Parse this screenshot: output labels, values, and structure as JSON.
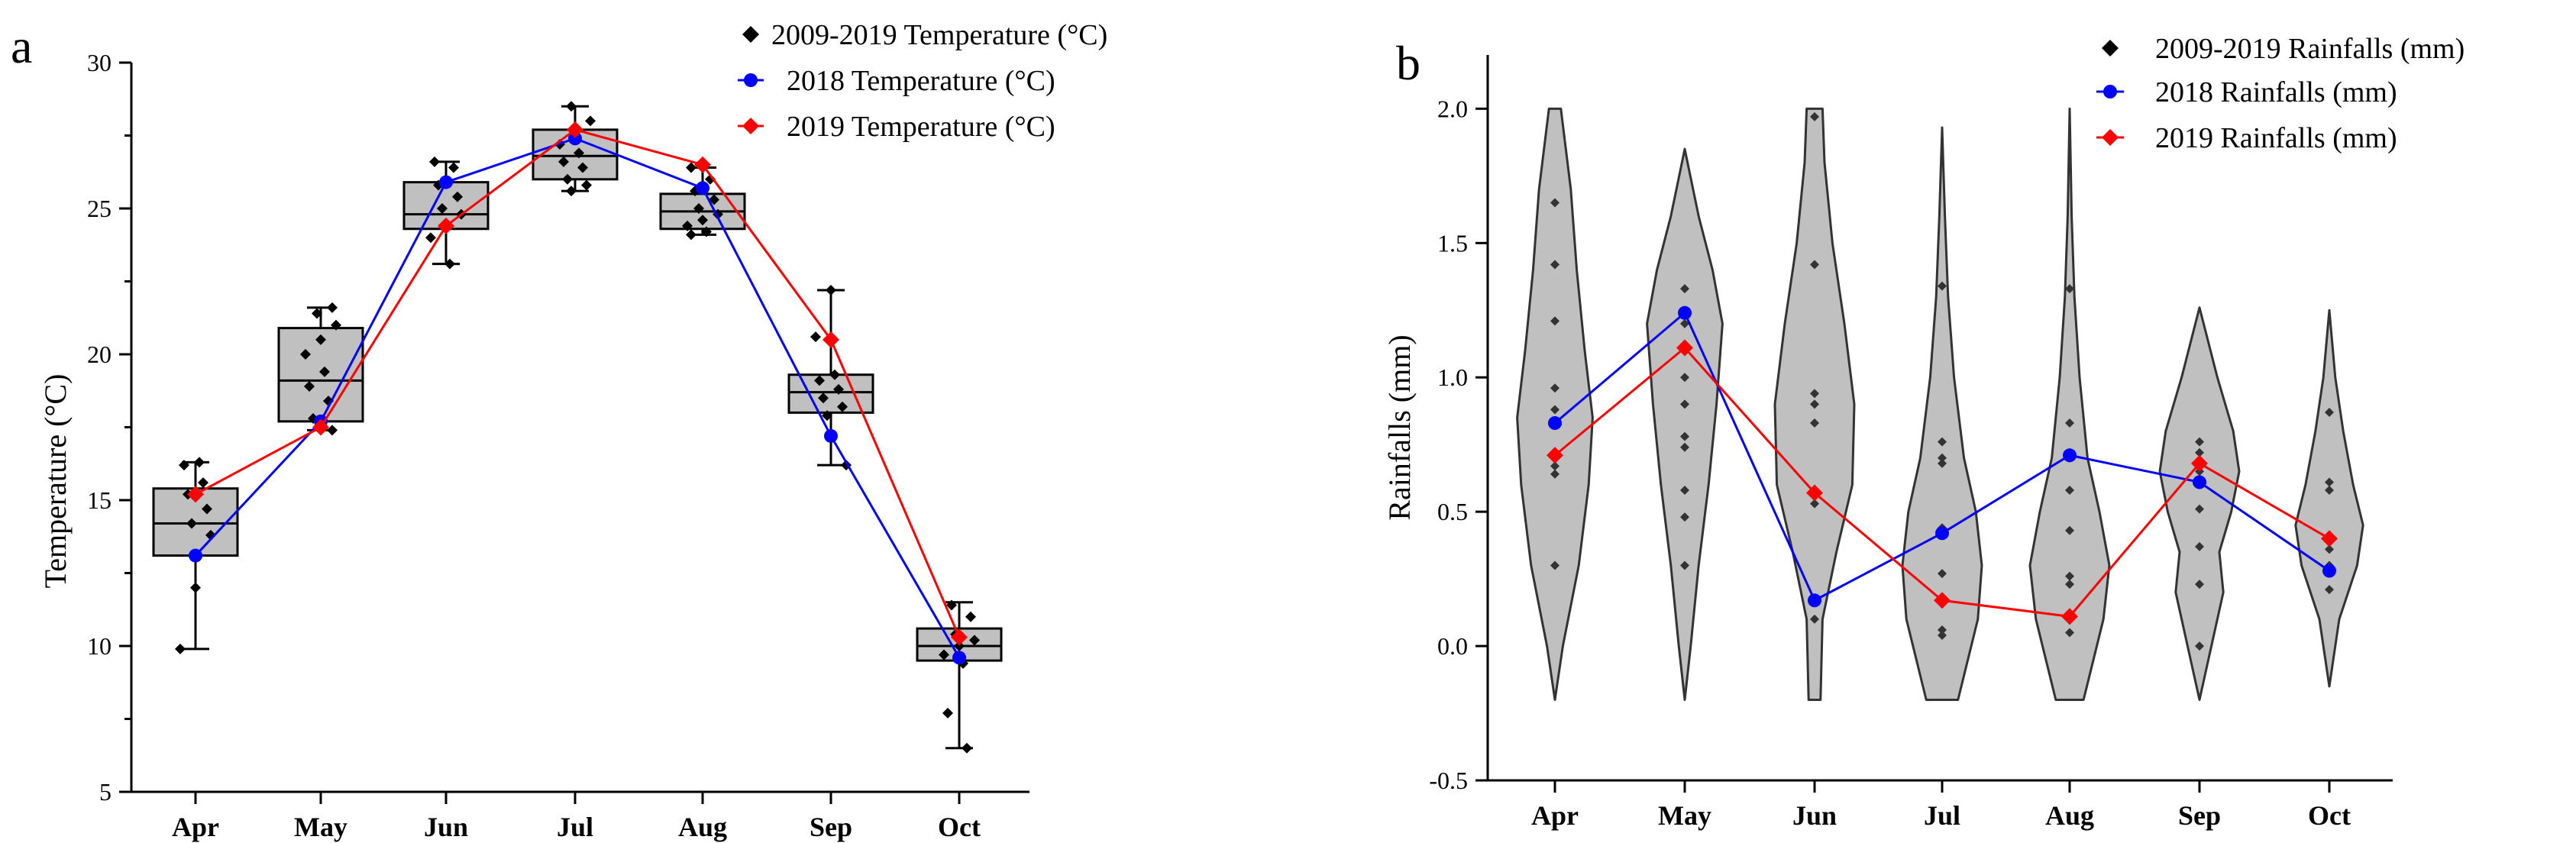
{
  "chart_data": [
    {
      "type": "box",
      "panel_label": "a",
      "title": "",
      "xlabel": "",
      "ylabel": "Temperature (°C)",
      "ylim": [
        5,
        30
      ],
      "yticks": [
        5,
        10,
        15,
        20,
        25,
        30
      ],
      "categories": [
        "Apr",
        "May",
        "Jun",
        "Jul",
        "Aug",
        "Sep",
        "Oct"
      ],
      "legend": {
        "placement": "top-right",
        "entries": [
          "2009-2019 Temperature (°C)",
          "2018 Temperature (°C)",
          "2019 Temperature (°C)"
        ]
      },
      "box_stats": [
        {
          "whisker_low": 9.9,
          "q1": 13.1,
          "median": 14.2,
          "q3": 15.4,
          "whisker_high": 16.3
        },
        {
          "whisker_low": 17.4,
          "q1": 17.7,
          "median": 19.1,
          "q3": 20.9,
          "whisker_high": 21.6
        },
        {
          "whisker_low": 23.1,
          "q1": 24.3,
          "median": 24.8,
          "q3": 25.9,
          "whisker_high": 26.6
        },
        {
          "whisker_low": 25.6,
          "q1": 26.0,
          "median": 26.8,
          "q3": 27.7,
          "whisker_high": 28.5
        },
        {
          "whisker_low": 24.1,
          "q1": 24.3,
          "median": 24.9,
          "q3": 25.5,
          "whisker_high": 26.4
        },
        {
          "whisker_low": 16.2,
          "q1": 18.0,
          "median": 18.7,
          "q3": 19.3,
          "whisker_high": 22.2
        },
        {
          "whisker_low": 6.5,
          "q1": 9.5,
          "median": 10.0,
          "q3": 10.6,
          "whisker_high": 11.5
        }
      ],
      "points_2009_2019": [
        [
          9.9,
          12.0,
          13.8,
          14.2,
          14.7,
          15.2,
          15.6,
          16.2,
          16.3
        ],
        [
          17.4,
          17.8,
          18.4,
          18.9,
          19.4,
          20.0,
          20.5,
          21.0,
          21.4,
          21.6
        ],
        [
          23.1,
          24.0,
          24.4,
          24.8,
          25.0,
          25.4,
          25.8,
          26.4,
          26.6
        ],
        [
          25.6,
          25.8,
          26.0,
          26.4,
          26.6,
          26.9,
          27.2,
          27.5,
          28.0,
          28.5
        ],
        [
          24.1,
          24.2,
          24.4,
          24.6,
          24.8,
          25.0,
          25.3,
          25.6,
          26.0,
          26.4
        ],
        [
          16.2,
          17.9,
          18.2,
          18.5,
          18.8,
          19.1,
          19.3,
          20.6,
          22.2
        ],
        [
          6.5,
          7.7,
          9.4,
          9.7,
          10.0,
          10.2,
          10.4,
          11.0,
          11.4
        ]
      ],
      "series": [
        {
          "name": "2018 Temperature (°C)",
          "color": "#0000ff",
          "marker": "circle",
          "values": [
            13.1,
            17.7,
            25.9,
            27.4,
            25.7,
            17.2,
            9.6
          ]
        },
        {
          "name": "2019 Temperature (°C)",
          "color": "#ff0000",
          "marker": "diamond",
          "values": [
            15.2,
            17.5,
            24.4,
            27.7,
            26.5,
            20.5,
            10.3
          ]
        }
      ]
    },
    {
      "type": "violin",
      "panel_label": "b",
      "title": "",
      "xlabel": "",
      "ylabel": "Rainfalls (mm)",
      "ylim": [
        -0.5,
        2.2
      ],
      "yticks": [
        -0.5,
        0.0,
        0.5,
        1.0,
        1.5,
        2.0
      ],
      "categories": [
        "Apr",
        "May",
        "Jun",
        "Jul",
        "Aug",
        "Sep",
        "Oct"
      ],
      "legend": {
        "placement": "top-right",
        "entries": [
          "2009-2019  Rainfalls (mm)",
          "2018 Rainfalls (mm)",
          "2019 Rainfalls (mm)"
        ]
      },
      "violin_profiles": [
        [
          [
            -0.2,
            0.0
          ],
          [
            0.0,
            0.2
          ],
          [
            0.3,
            0.6
          ],
          [
            0.6,
            0.85
          ],
          [
            0.85,
            0.95
          ],
          [
            1.1,
            0.75
          ],
          [
            1.4,
            0.55
          ],
          [
            1.7,
            0.4
          ],
          [
            2.0,
            0.15
          ]
        ],
        [
          [
            -0.2,
            0.0
          ],
          [
            0.0,
            0.15
          ],
          [
            0.3,
            0.35
          ],
          [
            0.6,
            0.6
          ],
          [
            0.9,
            0.8
          ],
          [
            1.2,
            0.95
          ],
          [
            1.4,
            0.7
          ],
          [
            1.6,
            0.35
          ],
          [
            1.85,
            0.0
          ]
        ],
        [
          [
            -0.2,
            0.15
          ],
          [
            0.1,
            0.2
          ],
          [
            0.35,
            0.55
          ],
          [
            0.6,
            0.95
          ],
          [
            0.9,
            1.0
          ],
          [
            1.2,
            0.75
          ],
          [
            1.5,
            0.45
          ],
          [
            1.8,
            0.25
          ],
          [
            2.0,
            0.2
          ]
        ],
        [
          [
            -0.2,
            0.4
          ],
          [
            0.1,
            0.9
          ],
          [
            0.3,
            1.0
          ],
          [
            0.5,
            0.85
          ],
          [
            0.7,
            0.55
          ],
          [
            1.0,
            0.3
          ],
          [
            1.3,
            0.15
          ],
          [
            1.6,
            0.07
          ],
          [
            1.93,
            0.0
          ]
        ],
        [
          [
            -0.2,
            0.35
          ],
          [
            0.1,
            0.85
          ],
          [
            0.3,
            1.0
          ],
          [
            0.5,
            0.75
          ],
          [
            0.7,
            0.45
          ],
          [
            1.0,
            0.25
          ],
          [
            1.3,
            0.12
          ],
          [
            1.6,
            0.05
          ],
          [
            2.0,
            0.0
          ]
        ],
        [
          [
            -0.2,
            0.0
          ],
          [
            0.0,
            0.3
          ],
          [
            0.2,
            0.6
          ],
          [
            0.35,
            0.5
          ],
          [
            0.5,
            0.8
          ],
          [
            0.65,
            1.0
          ],
          [
            0.8,
            0.85
          ],
          [
            1.0,
            0.45
          ],
          [
            1.26,
            0.0
          ]
        ],
        [
          [
            -0.15,
            0.0
          ],
          [
            0.1,
            0.25
          ],
          [
            0.3,
            0.7
          ],
          [
            0.45,
            0.85
          ],
          [
            0.6,
            0.6
          ],
          [
            0.8,
            0.35
          ],
          [
            1.0,
            0.15
          ],
          [
            1.25,
            0.0
          ]
        ]
      ],
      "points_2009_2019": [
        [
          0.3,
          0.64,
          0.67,
          0.88,
          0.96,
          1.21,
          1.42,
          1.65
        ],
        [
          0.3,
          0.48,
          0.58,
          0.74,
          0.78,
          0.9,
          1.0,
          1.2,
          1.33
        ],
        [
          0.1,
          0.17,
          0.53,
          0.57,
          0.83,
          0.9,
          0.94,
          1.42,
          1.97
        ],
        [
          0.04,
          0.06,
          0.17,
          0.27,
          0.44,
          0.68,
          0.7,
          0.76,
          1.34
        ],
        [
          0.05,
          0.1,
          0.23,
          0.26,
          0.43,
          0.58,
          0.7,
          0.83,
          1.33
        ],
        [
          0.0,
          0.23,
          0.37,
          0.51,
          0.65,
          0.72,
          0.76
        ],
        [
          0.21,
          0.3,
          0.36,
          0.58,
          0.61,
          0.87
        ]
      ],
      "series": [
        {
          "name": "2018 Rainfalls (mm)",
          "color": "#0000ff",
          "marker": "circle",
          "values": [
            0.83,
            1.24,
            0.17,
            0.42,
            0.71,
            0.61,
            0.28
          ]
        },
        {
          "name": "2019 Rainfalls (mm)",
          "color": "#ff0000",
          "marker": "diamond",
          "values": [
            0.71,
            1.11,
            0.57,
            0.17,
            0.11,
            0.68,
            0.4
          ]
        }
      ]
    }
  ]
}
